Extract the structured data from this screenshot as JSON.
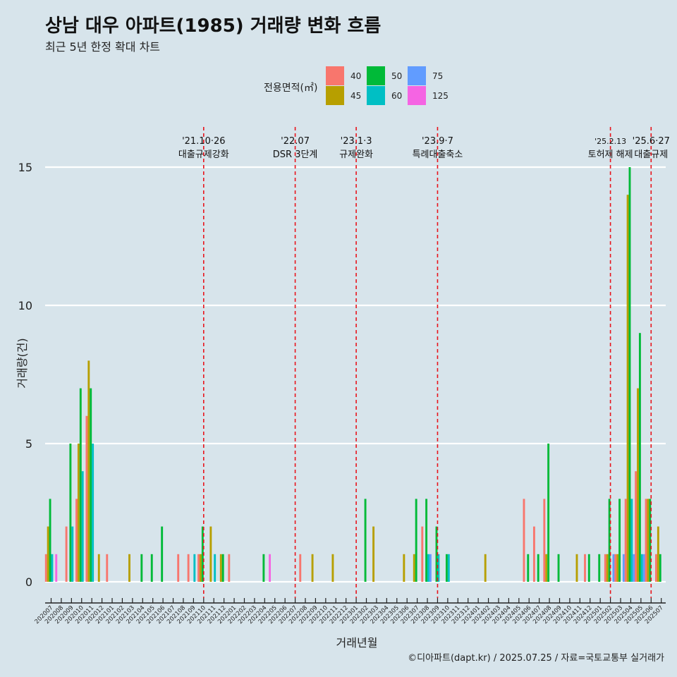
{
  "title": "상남 대우 아파트(1985) 거래량 변화 흐름",
  "subtitle": "최근 5년 한정 확대 차트",
  "caption": "©디아파트(dapt.kr) / 2025.07.25 / 자료=국토교통부 실거래가",
  "legend": {
    "title": "전용면적(㎡)",
    "items": [
      {
        "label": "40",
        "color": "#f8766d"
      },
      {
        "label": "45",
        "color": "#b79f00"
      },
      {
        "label": "50",
        "color": "#00ba38"
      },
      {
        "label": "60",
        "color": "#00bfc4"
      },
      {
        "label": "75",
        "color": "#619cff"
      },
      {
        "label": "125",
        "color": "#f564e3"
      }
    ]
  },
  "chart_data": {
    "type": "bar",
    "title": "상남 대우 아파트(1985) 거래량 변화 흐름",
    "subtitle": "최근 5년 한정 확대 차트",
    "xlabel": "거래년월",
    "ylabel": "거래량(건)",
    "ylim": [
      0,
      15
    ],
    "yticks": [
      0,
      5,
      10,
      15
    ],
    "grid": true,
    "legend_position": "top",
    "categories": [
      "202007",
      "202008",
      "202009",
      "202010",
      "202011",
      "202012",
      "202101",
      "202102",
      "202103",
      "202104",
      "202105",
      "202106",
      "202107",
      "202108",
      "202109",
      "202110",
      "202111",
      "202112",
      "202201",
      "202202",
      "202203",
      "202204",
      "202205",
      "202206",
      "202207",
      "202208",
      "202209",
      "202210",
      "202211",
      "202212",
      "202301",
      "202302",
      "202303",
      "202304",
      "202305",
      "202306",
      "202307",
      "202308",
      "202309",
      "202310",
      "202311",
      "202312",
      "202401",
      "202402",
      "202403",
      "202404",
      "202405",
      "202406",
      "202407",
      "202408",
      "202409",
      "202410",
      "202411",
      "202412",
      "202501",
      "202502",
      "202503",
      "202504",
      "202505",
      "202506",
      "202507"
    ],
    "series": [
      {
        "name": "40",
        "values": [
          1,
          0,
          2,
          3,
          6,
          0,
          1,
          0,
          0,
          0,
          0,
          0,
          0,
          1,
          1,
          1,
          0,
          0,
          1,
          0,
          0,
          0,
          0,
          0,
          0,
          1,
          0,
          0,
          0,
          0,
          0,
          0,
          0,
          0,
          0,
          0,
          0,
          2,
          0,
          0,
          0,
          0,
          0,
          0,
          0,
          0,
          0,
          3,
          2,
          3,
          0,
          0,
          0,
          1,
          0,
          1,
          1,
          3,
          4,
          3,
          1
        ]
      },
      {
        "name": "45",
        "values": [
          2,
          0,
          0,
          5,
          8,
          1,
          0,
          0,
          1,
          0,
          0,
          0,
          0,
          0,
          0,
          1,
          2,
          1,
          0,
          0,
          0,
          0,
          0,
          0,
          0,
          0,
          1,
          0,
          1,
          0,
          0,
          0,
          2,
          0,
          0,
          1,
          1,
          0,
          0,
          0,
          0,
          0,
          0,
          1,
          0,
          0,
          0,
          0,
          0,
          1,
          0,
          0,
          1,
          0,
          0,
          1,
          1,
          14,
          7,
          3,
          2
        ]
      },
      {
        "name": "50",
        "values": [
          3,
          0,
          5,
          7,
          7,
          0,
          0,
          0,
          0,
          1,
          1,
          2,
          0,
          0,
          0,
          2,
          0,
          1,
          0,
          0,
          0,
          1,
          0,
          0,
          0,
          0,
          0,
          0,
          0,
          0,
          0,
          3,
          0,
          0,
          0,
          0,
          3,
          3,
          2,
          1,
          0,
          0,
          0,
          0,
          0,
          0,
          0,
          1,
          1,
          5,
          1,
          0,
          0,
          1,
          1,
          3,
          3,
          15,
          9,
          3,
          1
        ]
      },
      {
        "name": "60",
        "values": [
          1,
          0,
          2,
          4,
          5,
          0,
          0,
          0,
          0,
          0,
          0,
          0,
          0,
          0,
          1,
          0,
          1,
          0,
          0,
          0,
          0,
          0,
          0,
          0,
          0,
          0,
          0,
          0,
          0,
          0,
          0,
          0,
          0,
          0,
          0,
          0,
          0,
          1,
          1,
          1,
          0,
          0,
          0,
          0,
          0,
          0,
          0,
          0,
          0,
          0,
          0,
          0,
          0,
          0,
          0,
          0,
          0,
          3,
          1,
          0,
          0
        ]
      },
      {
        "name": "75",
        "values": [
          0,
          0,
          0,
          0,
          0,
          0,
          0,
          0,
          0,
          0,
          0,
          0,
          0,
          0,
          0,
          0,
          0,
          0,
          0,
          0,
          0,
          0,
          0,
          0,
          0,
          0,
          0,
          0,
          0,
          0,
          0,
          0,
          0,
          0,
          0,
          0,
          0,
          1,
          0,
          0,
          0,
          0,
          0,
          0,
          0,
          0,
          0,
          0,
          0,
          0,
          0,
          0,
          0,
          0,
          0,
          1,
          1,
          1,
          1,
          0,
          0
        ]
      },
      {
        "name": "125",
        "values": [
          1,
          0,
          0,
          0,
          0,
          0,
          0,
          0,
          0,
          0,
          0,
          0,
          0,
          0,
          0,
          0,
          0,
          0,
          0,
          0,
          0,
          1,
          0,
          0,
          0,
          0,
          0,
          0,
          0,
          0,
          0,
          0,
          0,
          0,
          0,
          0,
          0,
          0,
          0,
          0,
          0,
          0,
          0,
          0,
          0,
          0,
          0,
          0,
          0,
          0,
          0,
          0,
          0,
          0,
          0,
          0,
          0,
          1,
          1,
          0,
          0
        ]
      }
    ],
    "annotations": [
      {
        "x": "202110",
        "date": "'21.10·26",
        "text": "대출규제강화"
      },
      {
        "x": "202207",
        "date": "'22.07",
        "text": "DSR 3단계"
      },
      {
        "x": "202301",
        "date": "'23.1·3",
        "text": "규제완화"
      },
      {
        "x": "202309",
        "date": "'23.9·7",
        "text": "특례대출축소"
      },
      {
        "x": "202502",
        "date": "'25.2.13",
        "text": "토허제 해제"
      },
      {
        "x": "202506",
        "date": "'25.6·27",
        "text": "대출규제"
      }
    ]
  }
}
